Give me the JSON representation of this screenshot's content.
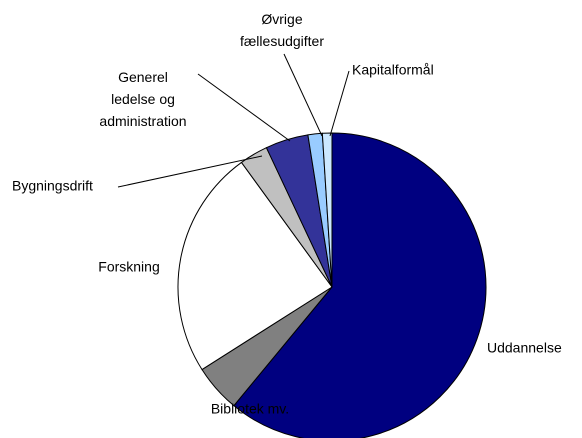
{
  "chart_data": {
    "type": "pie",
    "categories": [
      "Uddannelse",
      "Bibliotek mv.",
      "Forskning",
      "Bygningsdrift",
      "Generel ledelse og administration",
      "Øvrige fællesudgifter",
      "Kapitalformål"
    ],
    "values": [
      61,
      5,
      24,
      3,
      4.5,
      1.5,
      1
    ],
    "colors": [
      "#000080",
      "#808080",
      "#ffffff",
      "#c0c0c0",
      "#333399",
      "#99ccff",
      "#cce8ff"
    ]
  }
}
